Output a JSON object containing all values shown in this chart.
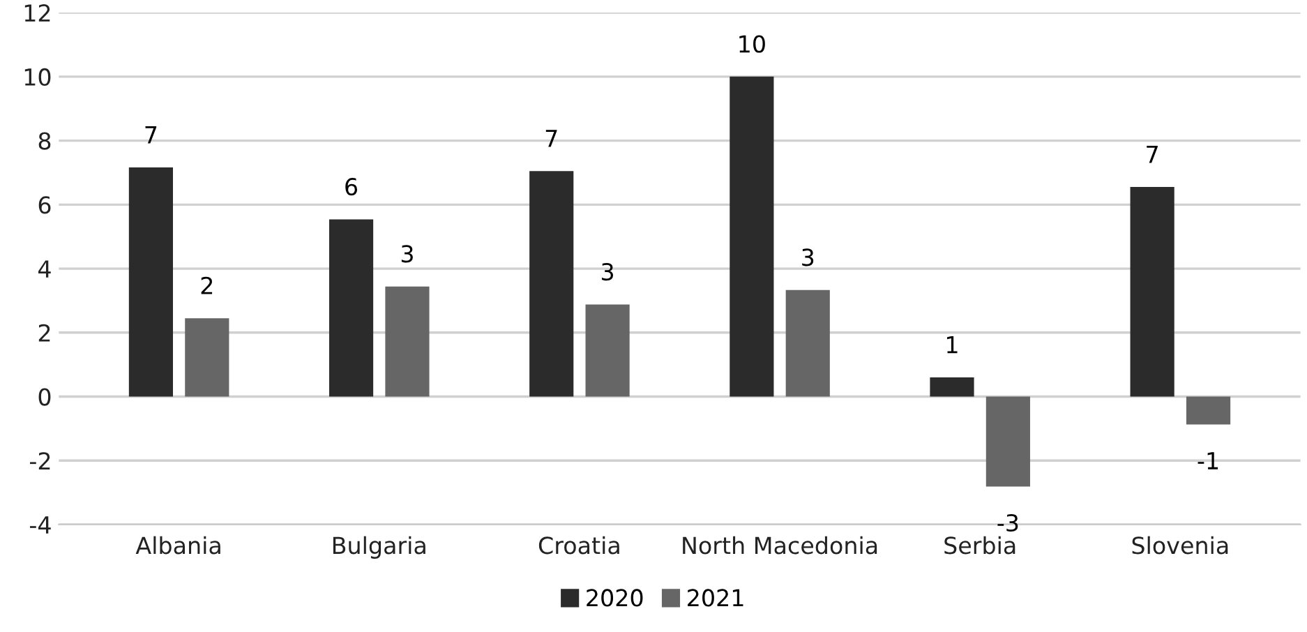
{
  "chart_data": {
    "type": "bar",
    "categories": [
      "Albania",
      "Bulgaria",
      "Croatia",
      "North Macedonia",
      "Serbia",
      "Slovenia"
    ],
    "series": [
      {
        "name": "2020",
        "color": "#2b2b2b",
        "values": [
          7.16,
          5.54,
          7.05,
          10.0,
          0.6,
          6.55
        ],
        "value_labels": [
          "7",
          "6",
          "7",
          "10",
          "1",
          "7"
        ]
      },
      {
        "name": "2021",
        "color": "#666666",
        "values": [
          2.45,
          3.44,
          2.88,
          3.33,
          -2.81,
          -0.87
        ],
        "value_labels": [
          "2",
          "3",
          "3",
          "3",
          "-3",
          "-1"
        ]
      }
    ],
    "ylim": [
      -4,
      12
    ],
    "yticks": [
      -4,
      -2,
      0,
      2,
      4,
      6,
      8,
      10,
      12
    ],
    "grid": "y",
    "legend": "bottom"
  }
}
